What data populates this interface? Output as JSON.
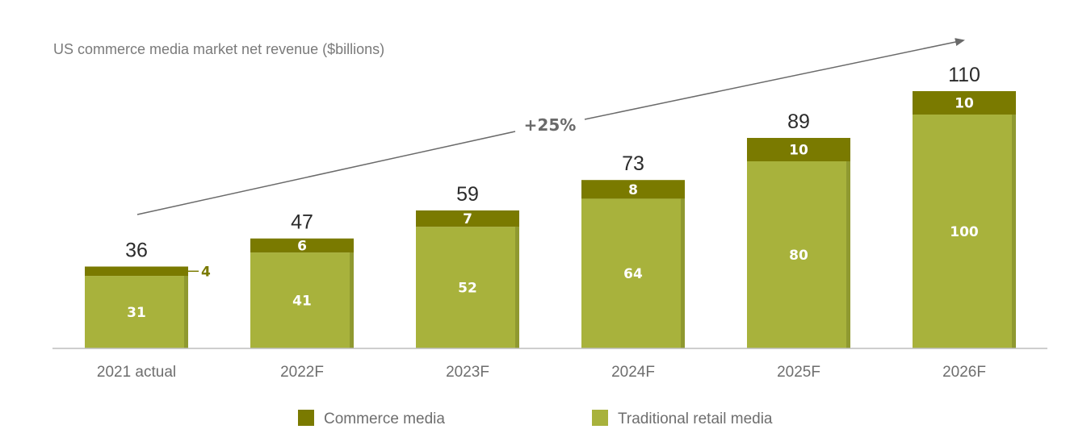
{
  "chart_data": {
    "type": "bar",
    "stacked": true,
    "title": "US commerce media market net revenue ($billions)",
    "categories": [
      "2021 actual",
      "2022F",
      "2023F",
      "2024F",
      "2025F",
      "2026F"
    ],
    "series": [
      {
        "name": "Traditional retail media",
        "values": [
          31,
          41,
          52,
          64,
          80,
          100
        ],
        "color": "#a8b23c"
      },
      {
        "name": "Commerce media",
        "values": [
          4,
          6,
          7,
          8,
          10,
          10
        ],
        "color": "#7a7a00"
      }
    ],
    "totals": [
      "36",
      "47",
      "59",
      "73",
      "89",
      "110"
    ],
    "segment_labels": {
      "Traditional retail media": [
        "31",
        "41",
        "52",
        "64",
        "80",
        "100"
      ],
      "Commerce media": [
        "4",
        "6",
        "7",
        "8",
        "10",
        "10"
      ]
    },
    "growth_annotation": "+25%",
    "ylim": [
      0,
      120
    ],
    "grid": false,
    "legend_position": "bottom"
  }
}
